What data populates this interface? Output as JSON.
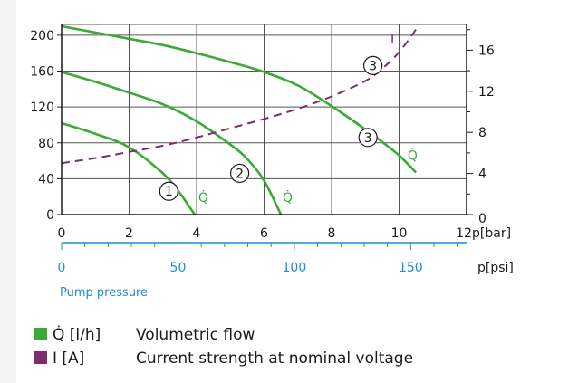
{
  "colors": {
    "flow": "#3aaa35",
    "current": "#7b2d6e",
    "psi_axis": "#1f8fc8",
    "grid": "#555555"
  },
  "chart_data": {
    "type": "line",
    "x_axis": {
      "unit_label": "p[bar]",
      "ticks": [
        0,
        2,
        4,
        6,
        8,
        10,
        12
      ],
      "range": [
        0,
        12
      ]
    },
    "psi_axis": {
      "unit_label": "p[psi]",
      "ticks": [
        0,
        50,
        100,
        150
      ],
      "range": [
        0,
        174
      ],
      "xlabel": "Pump pressure"
    },
    "y_left": {
      "ticks": [
        0,
        40,
        80,
        120,
        160,
        200
      ],
      "range": [
        0,
        212
      ]
    },
    "y_right": {
      "ticks": [
        0,
        4,
        8,
        12,
        16
      ],
      "range": [
        0,
        18.5
      ]
    },
    "series": [
      {
        "name": "1",
        "axis": "left",
        "kind": "flow",
        "x": [
          0,
          1,
          2,
          3,
          3.5,
          3.8,
          3.95
        ],
        "y": [
          102,
          90,
          75,
          46,
          24,
          8,
          0
        ]
      },
      {
        "name": "2",
        "axis": "left",
        "kind": "flow",
        "x": [
          0,
          1,
          2,
          3,
          4,
          5,
          5.5,
          6,
          6.5
        ],
        "y": [
          159,
          148,
          136,
          123,
          104,
          78,
          62,
          38,
          0
        ]
      },
      {
        "name": "3",
        "axis": "left",
        "kind": "flow",
        "x": [
          0,
          1,
          2,
          3,
          4,
          5,
          6,
          7,
          8,
          9,
          9.5,
          10,
          10.5
        ],
        "y": [
          210,
          203,
          196,
          189,
          180,
          170,
          159,
          144,
          121,
          95,
          81,
          66,
          47
        ]
      },
      {
        "name": "I",
        "axis": "right",
        "kind": "current",
        "x": [
          0,
          1,
          2,
          3,
          4,
          5,
          6,
          7,
          8,
          9,
          9.5,
          10,
          10.5
        ],
        "y": [
          5,
          5.5,
          6.1,
          6.7,
          7.5,
          8.4,
          9.3,
          10.3,
          11.5,
          13,
          14.2,
          15.8,
          18
        ]
      }
    ],
    "annotations": {
      "curve_markers": [
        {
          "label": "1",
          "x": 3.5,
          "y_left": 24,
          "qdot_x": 4.2,
          "qdot_y": 20
        },
        {
          "label": "2",
          "x": 5.6,
          "y_left": 44,
          "qdot_x": 6.7,
          "qdot_y": 20
        },
        {
          "label": "3",
          "x": 9.4,
          "y_left": 84,
          "qdot_x": 10.4,
          "qdot_y": 67
        }
      ],
      "current_marker": {
        "label": "3",
        "x": 9.6,
        "y_right": 14.5,
        "i_x": 9.8,
        "i_y": 17.2,
        "i_text": "I"
      },
      "qdot_text": "Q̇"
    },
    "legend": [
      {
        "symbol": "Q̇ [l/h]",
        "label": "Volumetric flow",
        "kind": "flow"
      },
      {
        "symbol": "I [A]",
        "label": "Current strength at nominal voltage",
        "kind": "current"
      }
    ]
  }
}
